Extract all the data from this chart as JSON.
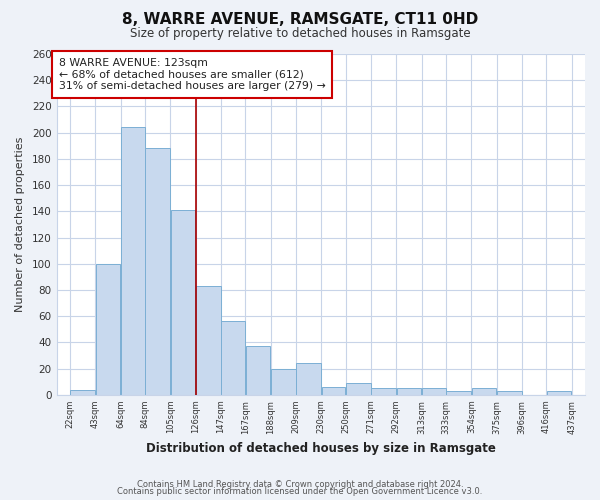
{
  "title": "8, WARRE AVENUE, RAMSGATE, CT11 0HD",
  "subtitle": "Size of property relative to detached houses in Ramsgate",
  "xlabel": "Distribution of detached houses by size in Ramsgate",
  "ylabel": "Number of detached properties",
  "bar_left_edges": [
    22,
    43,
    64,
    84,
    105,
    126,
    147,
    167,
    188,
    209,
    230,
    250,
    271,
    292,
    313,
    333,
    354,
    375,
    396,
    416
  ],
  "bar_widths": [
    21,
    21,
    20,
    21,
    21,
    21,
    20,
    21,
    21,
    21,
    20,
    21,
    21,
    21,
    20,
    21,
    21,
    21,
    20,
    21
  ],
  "bar_heights": [
    4,
    100,
    204,
    188,
    141,
    83,
    56,
    37,
    20,
    24,
    6,
    9,
    5,
    5,
    5,
    3,
    5,
    3,
    0,
    3
  ],
  "bar_color": "#c8d9ee",
  "bar_edge_color": "#7bafd4",
  "tick_labels": [
    "22sqm",
    "43sqm",
    "64sqm",
    "84sqm",
    "105sqm",
    "126sqm",
    "147sqm",
    "167sqm",
    "188sqm",
    "209sqm",
    "230sqm",
    "250sqm",
    "271sqm",
    "292sqm",
    "313sqm",
    "333sqm",
    "354sqm",
    "375sqm",
    "396sqm",
    "416sqm",
    "437sqm"
  ],
  "tick_positions": [
    22,
    43,
    64,
    84,
    105,
    126,
    147,
    167,
    188,
    209,
    230,
    250,
    271,
    292,
    313,
    333,
    354,
    375,
    396,
    416,
    437
  ],
  "ylim": [
    0,
    260
  ],
  "xlim": [
    11,
    448
  ],
  "property_x": 126,
  "property_line_color": "#aa0000",
  "annotation_title": "8 WARRE AVENUE: 123sqm",
  "annotation_line1": "← 68% of detached houses are smaller (612)",
  "annotation_line2": "31% of semi-detached houses are larger (279) →",
  "annotation_box_color": "#ffffff",
  "annotation_box_edge": "#cc0000",
  "grid_color": "#c8d4e8",
  "plot_bg_color": "#ffffff",
  "figure_bg_color": "#eef2f8",
  "ytick_values": [
    0,
    20,
    40,
    60,
    80,
    100,
    120,
    140,
    160,
    180,
    200,
    220,
    240,
    260
  ],
  "footnote1": "Contains HM Land Registry data © Crown copyright and database right 2024.",
  "footnote2": "Contains public sector information licensed under the Open Government Licence v3.0."
}
